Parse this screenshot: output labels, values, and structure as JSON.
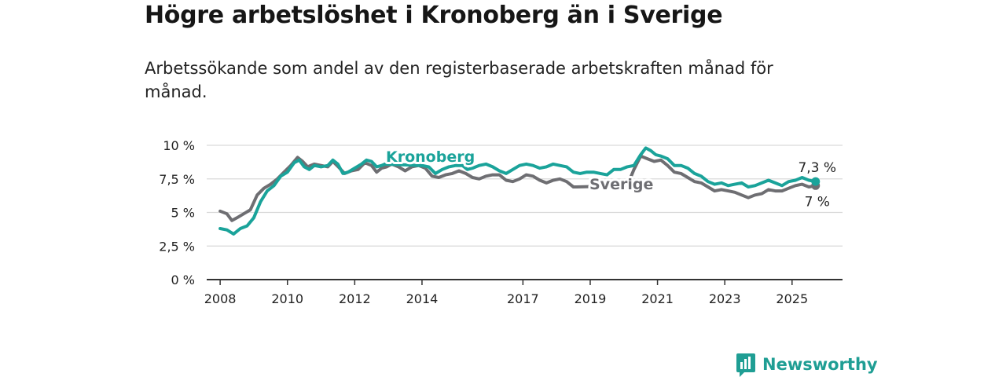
{
  "title": "Högre arbetslöshet i Kronoberg än i Sverige",
  "subtitle": "Arbetssökande som andel av den registerbaserade arbetskraften månad för månad.",
  "brand": {
    "name": "Newsworthy",
    "icon": "newsworthy-logo-icon"
  },
  "colors": {
    "kronoberg": "#1aa39a",
    "sverige": "#6e6e72",
    "grid": "#d9d9d9",
    "axis": "#333333"
  },
  "chart_data": {
    "type": "line",
    "title": "Högre arbetslöshet i Kronoberg än i Sverige",
    "subtitle": "Arbetssökande som andel av den registerbaserade arbetskraften månad för månad.",
    "x_unit": "year (decimal)",
    "xlim": [
      2007.6,
      2026.5
    ],
    "ylim": [
      0,
      10
    ],
    "x_ticks": [
      2008,
      2010,
      2012,
      2014,
      2017,
      2019,
      2021,
      2023,
      2025
    ],
    "x_tick_labels": [
      "2008",
      "2010",
      "2012",
      "2014",
      "2017",
      "2019",
      "2021",
      "2023",
      "2025"
    ],
    "y_ticks": [
      0,
      2.5,
      5,
      7.5,
      10
    ],
    "y_tick_labels": [
      "0 %",
      "2,5 %",
      "5 %",
      "7,5 %",
      "10 %"
    ],
    "grid": true,
    "series": [
      {
        "name": "Kronoberg",
        "end_label": "7,3 %",
        "points": [
          [
            2008.0,
            3.8
          ],
          [
            2008.2,
            3.7
          ],
          [
            2008.4,
            3.4
          ],
          [
            2008.6,
            3.8
          ],
          [
            2008.8,
            4.0
          ],
          [
            2009.0,
            4.6
          ],
          [
            2009.2,
            5.8
          ],
          [
            2009.4,
            6.6
          ],
          [
            2009.6,
            7.0
          ],
          [
            2009.8,
            7.7
          ],
          [
            2010.0,
            8.0
          ],
          [
            2010.2,
            8.7
          ],
          [
            2010.35,
            8.9
          ],
          [
            2010.5,
            8.4
          ],
          [
            2010.65,
            8.2
          ],
          [
            2010.8,
            8.5
          ],
          [
            2011.0,
            8.4
          ],
          [
            2011.2,
            8.5
          ],
          [
            2011.35,
            8.9
          ],
          [
            2011.5,
            8.6
          ],
          [
            2011.65,
            7.9
          ],
          [
            2011.8,
            8.0
          ],
          [
            2012.0,
            8.3
          ],
          [
            2012.2,
            8.6
          ],
          [
            2012.35,
            8.9
          ],
          [
            2012.5,
            8.8
          ],
          [
            2012.65,
            8.4
          ],
          [
            2012.8,
            8.5
          ],
          [
            2012.9,
            8.6
          ],
          [
            2014.0,
            8.5
          ],
          [
            2014.2,
            8.4
          ],
          [
            2014.4,
            7.9
          ],
          [
            2014.6,
            8.2
          ],
          [
            2014.8,
            8.4
          ],
          [
            2015.0,
            8.5
          ],
          [
            2015.2,
            8.5
          ],
          [
            2015.35,
            8.2
          ],
          [
            2015.5,
            8.3
          ],
          [
            2015.7,
            8.5
          ],
          [
            2015.9,
            8.6
          ],
          [
            2016.1,
            8.4
          ],
          [
            2016.3,
            8.1
          ],
          [
            2016.5,
            7.9
          ],
          [
            2016.7,
            8.2
          ],
          [
            2016.9,
            8.5
          ],
          [
            2017.1,
            8.6
          ],
          [
            2017.3,
            8.5
          ],
          [
            2017.5,
            8.3
          ],
          [
            2017.7,
            8.4
          ],
          [
            2017.9,
            8.6
          ],
          [
            2018.1,
            8.5
          ],
          [
            2018.3,
            8.4
          ],
          [
            2018.5,
            8.0
          ],
          [
            2018.7,
            7.9
          ],
          [
            2018.9,
            8.0
          ],
          [
            2019.1,
            8.0
          ],
          [
            2019.3,
            7.9
          ],
          [
            2019.5,
            7.8
          ],
          [
            2019.7,
            8.2
          ],
          [
            2019.9,
            8.2
          ],
          [
            2020.1,
            8.4
          ],
          [
            2020.3,
            8.5
          ],
          [
            2020.5,
            9.3
          ],
          [
            2020.65,
            9.8
          ],
          [
            2020.8,
            9.6
          ],
          [
            2020.95,
            9.3
          ],
          [
            2021.1,
            9.2
          ],
          [
            2021.3,
            9.0
          ],
          [
            2021.5,
            8.5
          ],
          [
            2021.7,
            8.5
          ],
          [
            2021.9,
            8.3
          ],
          [
            2022.1,
            7.9
          ],
          [
            2022.3,
            7.7
          ],
          [
            2022.5,
            7.3
          ],
          [
            2022.7,
            7.1
          ],
          [
            2022.9,
            7.2
          ],
          [
            2023.1,
            7.0
          ],
          [
            2023.3,
            7.1
          ],
          [
            2023.5,
            7.2
          ],
          [
            2023.7,
            6.9
          ],
          [
            2023.9,
            7.0
          ],
          [
            2024.1,
            7.2
          ],
          [
            2024.3,
            7.4
          ],
          [
            2024.5,
            7.2
          ],
          [
            2024.7,
            7.0
          ],
          [
            2024.9,
            7.3
          ],
          [
            2025.1,
            7.4
          ],
          [
            2025.3,
            7.6
          ],
          [
            2025.5,
            7.4
          ],
          [
            2025.7,
            7.3
          ]
        ]
      },
      {
        "name": "Sverige",
        "end_label": "7 %",
        "points": [
          [
            2008.0,
            5.1
          ],
          [
            2008.2,
            4.9
          ],
          [
            2008.35,
            4.4
          ],
          [
            2008.5,
            4.6
          ],
          [
            2008.7,
            4.9
          ],
          [
            2008.9,
            5.2
          ],
          [
            2009.1,
            6.3
          ],
          [
            2009.3,
            6.8
          ],
          [
            2009.5,
            7.1
          ],
          [
            2009.7,
            7.5
          ],
          [
            2009.9,
            8.0
          ],
          [
            2010.1,
            8.5
          ],
          [
            2010.3,
            9.1
          ],
          [
            2010.45,
            8.8
          ],
          [
            2010.6,
            8.4
          ],
          [
            2010.8,
            8.6
          ],
          [
            2011.0,
            8.5
          ],
          [
            2011.2,
            8.4
          ],
          [
            2011.35,
            8.8
          ],
          [
            2011.55,
            8.3
          ],
          [
            2011.7,
            7.9
          ],
          [
            2011.9,
            8.1
          ],
          [
            2012.1,
            8.2
          ],
          [
            2012.3,
            8.7
          ],
          [
            2012.5,
            8.5
          ],
          [
            2012.65,
            8.0
          ],
          [
            2012.8,
            8.3
          ],
          [
            2012.95,
            8.4
          ],
          [
            2013.1,
            8.6
          ],
          [
            2013.3,
            8.4
          ],
          [
            2013.5,
            8.1
          ],
          [
            2013.7,
            8.4
          ],
          [
            2013.9,
            8.5
          ],
          [
            2014.1,
            8.3
          ],
          [
            2014.3,
            7.7
          ],
          [
            2014.5,
            7.6
          ],
          [
            2014.7,
            7.8
          ],
          [
            2014.9,
            7.9
          ],
          [
            2015.1,
            8.1
          ],
          [
            2015.3,
            7.9
          ],
          [
            2015.5,
            7.6
          ],
          [
            2015.7,
            7.5
          ],
          [
            2015.9,
            7.7
          ],
          [
            2016.1,
            7.8
          ],
          [
            2016.3,
            7.8
          ],
          [
            2016.5,
            7.4
          ],
          [
            2016.7,
            7.3
          ],
          [
            2016.9,
            7.5
          ],
          [
            2017.1,
            7.8
          ],
          [
            2017.3,
            7.7
          ],
          [
            2017.5,
            7.4
          ],
          [
            2017.7,
            7.2
          ],
          [
            2017.9,
            7.4
          ],
          [
            2018.1,
            7.5
          ],
          [
            2018.3,
            7.3
          ],
          [
            2018.5,
            6.9
          ],
          [
            2018.6,
            6.9
          ],
          [
            2020.1,
            7.0
          ],
          [
            2020.3,
            8.2
          ],
          [
            2020.5,
            9.2
          ],
          [
            2020.7,
            9.0
          ],
          [
            2020.9,
            8.8
          ],
          [
            2021.1,
            8.9
          ],
          [
            2021.3,
            8.5
          ],
          [
            2021.5,
            8.0
          ],
          [
            2021.7,
            7.9
          ],
          [
            2021.9,
            7.6
          ],
          [
            2022.1,
            7.3
          ],
          [
            2022.3,
            7.2
          ],
          [
            2022.5,
            6.9
          ],
          [
            2022.7,
            6.6
          ],
          [
            2022.9,
            6.7
          ],
          [
            2023.1,
            6.6
          ],
          [
            2023.3,
            6.5
          ],
          [
            2023.5,
            6.3
          ],
          [
            2023.7,
            6.1
          ],
          [
            2023.9,
            6.3
          ],
          [
            2024.1,
            6.4
          ],
          [
            2024.3,
            6.7
          ],
          [
            2024.5,
            6.6
          ],
          [
            2024.7,
            6.6
          ],
          [
            2024.9,
            6.8
          ],
          [
            2025.1,
            7.0
          ],
          [
            2025.3,
            7.1
          ],
          [
            2025.5,
            6.9
          ],
          [
            2025.7,
            7.0
          ]
        ]
      }
    ]
  }
}
